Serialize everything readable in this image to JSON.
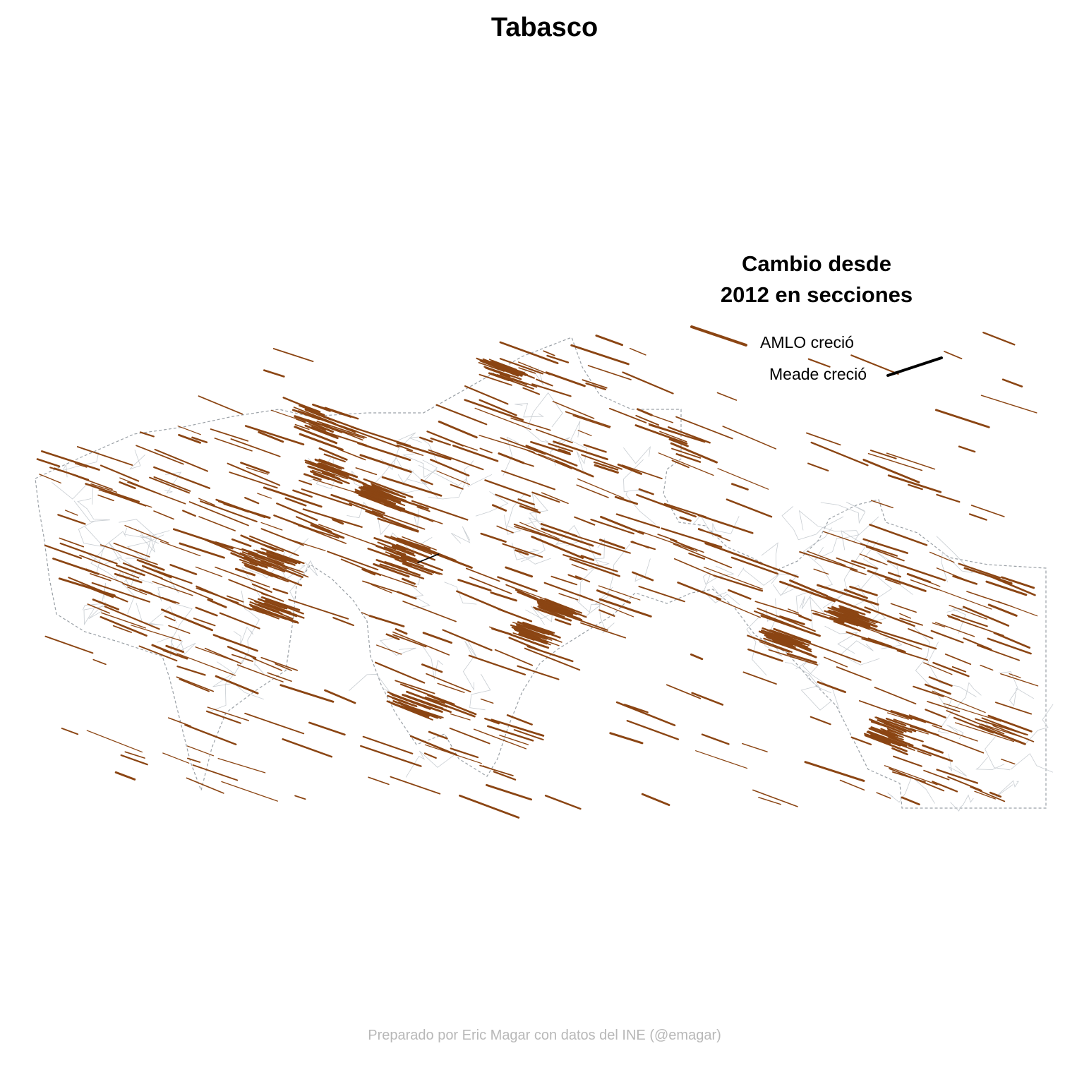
{
  "title": "Tabasco",
  "legend": {
    "title_line1": "Cambio desde",
    "title_line2": "2012 en secciones",
    "amlo_label": "AMLO creció",
    "meade_label": "Meade creció"
  },
  "caption": "Preparado por Eric Magar con datos del INE (@emagar)",
  "colors": {
    "amlo": "#8B4513",
    "meade": "#000000",
    "boundary": "#c8cdd2",
    "state_border": "#9aa0a6",
    "caption": "#b8b8b8"
  }
}
